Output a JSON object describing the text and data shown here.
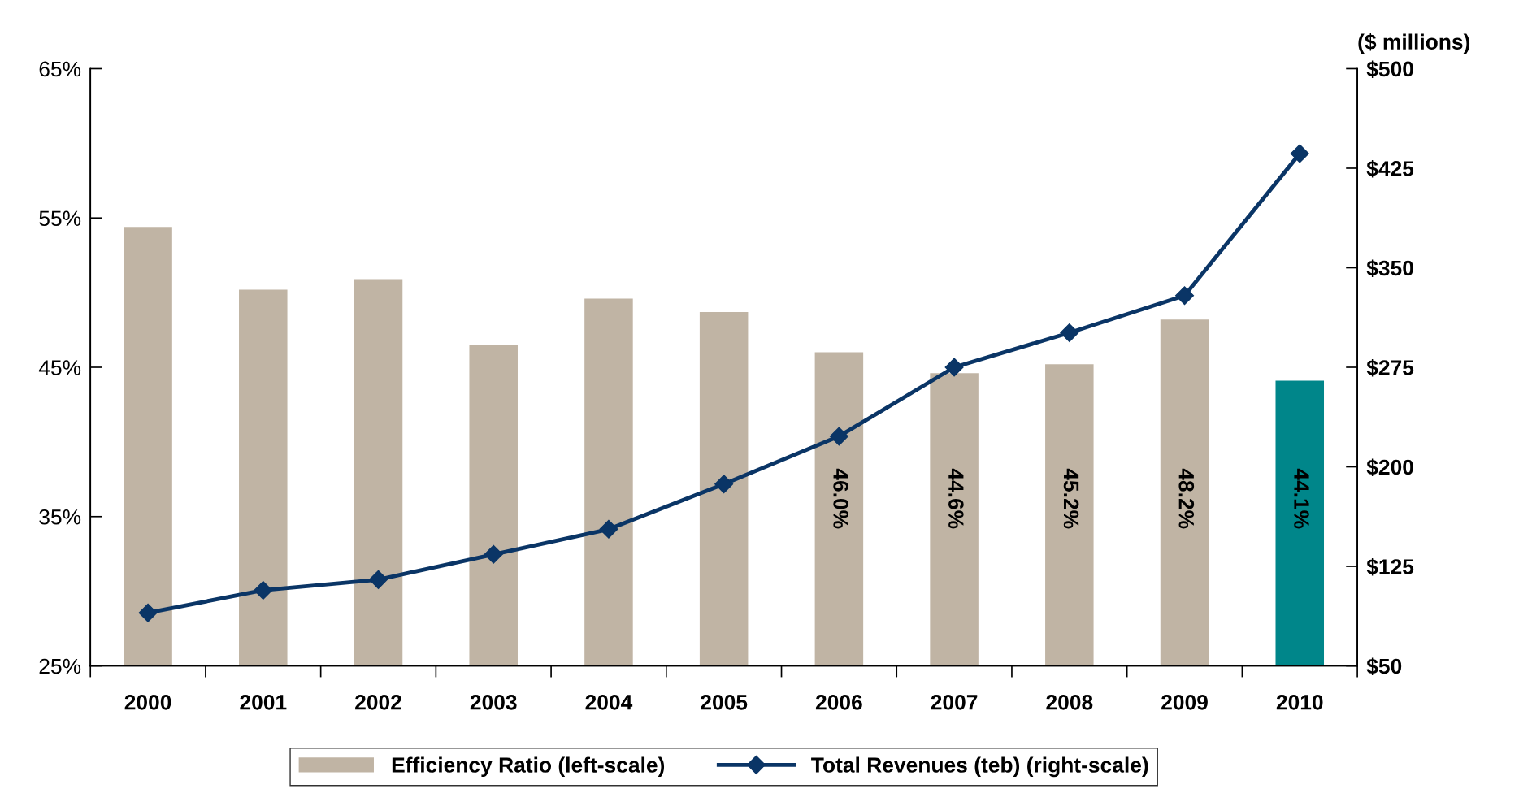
{
  "chart_data": {
    "type": "bar",
    "categories": [
      "2000",
      "2001",
      "2002",
      "2003",
      "2004",
      "2005",
      "2006",
      "2007",
      "2008",
      "2009",
      "2010"
    ],
    "series": [
      {
        "name": "Efficiency Ratio (left-scale)",
        "colors": [
          "#c0b4a4",
          "#c0b4a4",
          "#c0b4a4",
          "#c0b4a4",
          "#c0b4a4",
          "#c0b4a4",
          "#c0b4a4",
          "#c0b4a4",
          "#c0b4a4",
          "#c0b4a4",
          "#00868a"
        ],
        "values": [
          54.4,
          50.2,
          50.9,
          46.5,
          49.6,
          48.7,
          46.0,
          44.6,
          45.2,
          48.2,
          44.1
        ],
        "value_labels": [
          null,
          null,
          null,
          null,
          null,
          null,
          "46.0%",
          "44.6%",
          "45.2%",
          "48.2%",
          "44.1%"
        ]
      },
      {
        "name": "Total Revenues (teb) (right-scale)",
        "type": "line",
        "axis": "y2",
        "color": "#0a3566",
        "marker": "diamond",
        "values": [
          90,
          107,
          115,
          134,
          153,
          187,
          223,
          275,
          301,
          329,
          436
        ]
      }
    ],
    "ylim": [
      25,
      65
    ],
    "yticks": [
      {
        "value": 25,
        "label": "25%"
      },
      {
        "value": 35,
        "label": "35%"
      },
      {
        "value": 45,
        "label": "45%"
      },
      {
        "value": 55,
        "label": "55%"
      },
      {
        "value": 65,
        "label": "65%"
      }
    ],
    "y2lim": [
      50,
      500
    ],
    "y2ticks": [
      {
        "value": 50,
        "label": "$50"
      },
      {
        "value": 125,
        "label": "$125"
      },
      {
        "value": 200,
        "label": "$200"
      },
      {
        "value": 275,
        "label": "$275"
      },
      {
        "value": 350,
        "label": "$350"
      },
      {
        "value": 425,
        "label": "$425"
      },
      {
        "value": 500,
        "label": "$500"
      }
    ],
    "y2label": "($ millions)",
    "legend": "bottom",
    "grid": false
  }
}
